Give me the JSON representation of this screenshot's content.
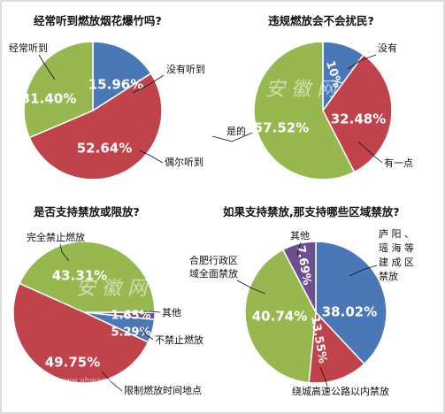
{
  "colors": {
    "blue": "#4a78b6",
    "red": "#c0424a",
    "green": "#97b84f",
    "purple": "#6b4f91"
  },
  "watermark": {
    "text": "安徽网",
    "url": "www.ahwang"
  },
  "chart_data": [
    {
      "type": "pie",
      "title": "经常听到燃放烟花爆竹吗?",
      "slices": [
        {
          "label": "没有听到",
          "value": 15.96,
          "display": "15.96%",
          "color": "blue"
        },
        {
          "label": "偶尔听到",
          "value": 52.64,
          "display": "52.64%",
          "color": "red"
        },
        {
          "label": "经常听到",
          "value": 31.4,
          "display": "31.40%",
          "color": "green"
        }
      ]
    },
    {
      "type": "pie",
      "title": "违规燃放会不会扰民?",
      "slices": [
        {
          "label": "没有",
          "value": 10.0,
          "display": "10%",
          "color": "blue"
        },
        {
          "label": "有一点",
          "value": 32.48,
          "display": "32.48%",
          "color": "red"
        },
        {
          "label": "是的",
          "value": 57.52,
          "display": "57.52%",
          "color": "green"
        }
      ]
    },
    {
      "type": "pie",
      "title": "是否支持禁放或限放?",
      "slices": [
        {
          "label": "其他",
          "value": 1.65,
          "display": "1.65%",
          "color": "purple"
        },
        {
          "label": "不禁止燃放",
          "value": 5.29,
          "display": "5.29%",
          "color": "blue"
        },
        {
          "label": "限制燃放时间地点",
          "value": 49.75,
          "display": "49.75%",
          "color": "red"
        },
        {
          "label": "完全禁止燃放",
          "value": 43.31,
          "display": "43.31%",
          "color": "green"
        }
      ]
    },
    {
      "type": "pie",
      "title": "如果支持禁放,那支持哪些区域禁放?",
      "slices": [
        {
          "label": "庐阳、瑶海等建成区禁放",
          "value": 38.02,
          "display": "38.02%",
          "color": "blue"
        },
        {
          "label": "绕城高速公路以内禁放",
          "value": 13.55,
          "display": "13.55%",
          "color": "red"
        },
        {
          "label": "合肥行政区域全面禁放",
          "value": 40.74,
          "display": "40.74%",
          "color": "green"
        },
        {
          "label": "其他",
          "value": 7.69,
          "display": "7.69%",
          "color": "purple"
        }
      ]
    }
  ]
}
